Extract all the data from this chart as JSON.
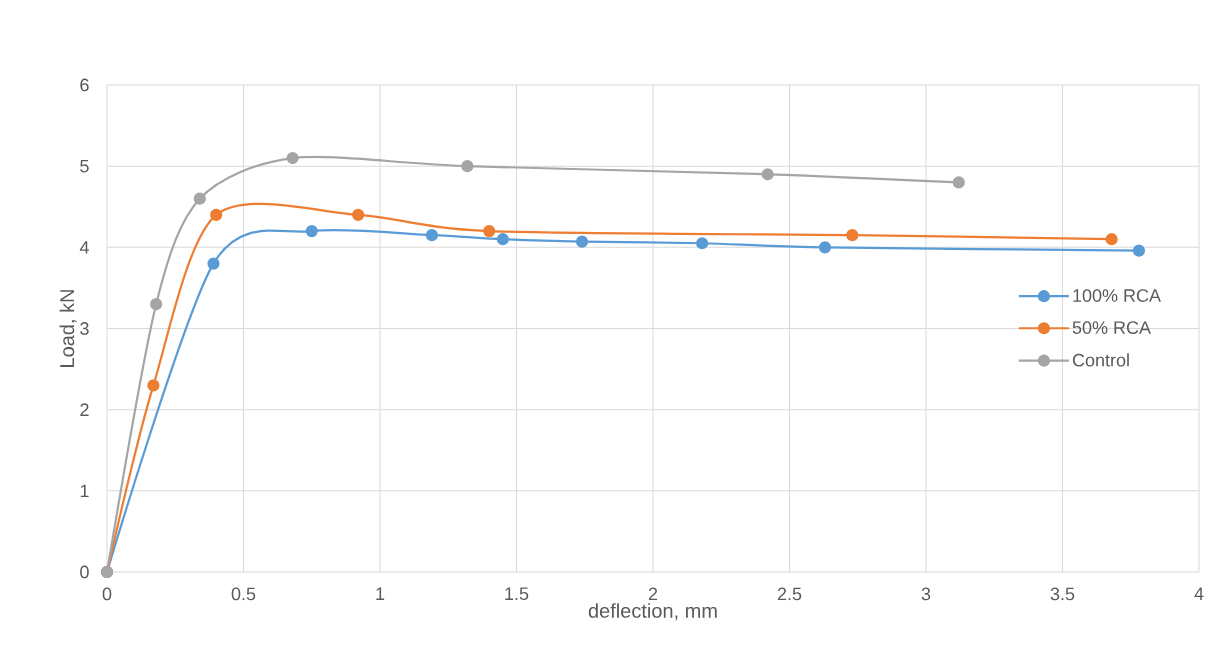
{
  "chart_data": {
    "type": "line",
    "xlabel": "deflection, mm",
    "ylabel": "Load, kN",
    "xlim": [
      0,
      4
    ],
    "ylim": [
      0,
      6
    ],
    "xticks": [
      0,
      0.5,
      1,
      1.5,
      2,
      2.5,
      3,
      3.5,
      4
    ],
    "yticks": [
      0,
      1,
      2,
      3,
      4,
      5,
      6
    ],
    "grid": true,
    "legend": "right",
    "marker": "circle",
    "line_style": "solid",
    "series": [
      {
        "name": "100% RCA",
        "color": "#5b9bd5",
        "x": [
          0,
          0.39,
          0.75,
          1.19,
          1.45,
          1.74,
          2.18,
          2.63,
          3.78
        ],
        "values": [
          0,
          3.8,
          4.2,
          4.15,
          4.1,
          4.07,
          4.05,
          4.0,
          3.96
        ]
      },
      {
        "name": "50% RCA",
        "color": "#ed7d31",
        "x": [
          0,
          0.17,
          0.4,
          0.92,
          1.4,
          2.73,
          3.68
        ],
        "values": [
          0,
          2.3,
          4.4,
          4.4,
          4.2,
          4.15,
          4.1
        ]
      },
      {
        "name": "Control",
        "color": "#a5a5a5",
        "x": [
          0,
          0.18,
          0.34,
          0.68,
          1.32,
          2.42,
          3.12
        ],
        "values": [
          0,
          3.3,
          4.6,
          5.1,
          5.0,
          4.9,
          4.8
        ]
      }
    ]
  }
}
